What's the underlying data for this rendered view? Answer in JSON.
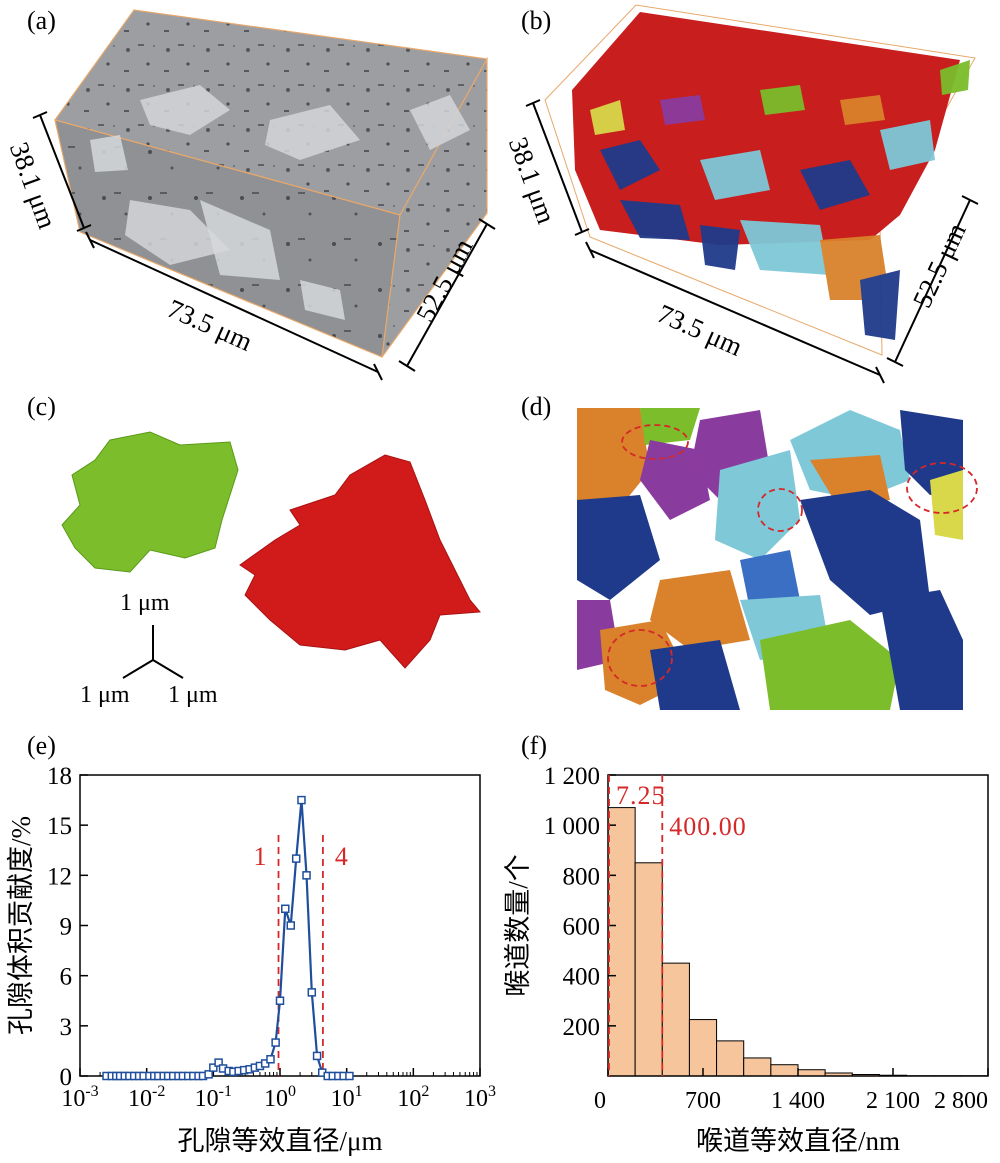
{
  "panels": {
    "a": {
      "label": "(a)",
      "dim_x": "73.5 μm",
      "dim_y": "52.5 μm",
      "dim_z": "38.1 μm"
    },
    "b": {
      "label": "(b)",
      "dim_x": "73.5 μm",
      "dim_y": "52.5 μm",
      "dim_z": "38.1 μm"
    },
    "c": {
      "label": "(c)",
      "axis_up": "1 μm",
      "axis_left": "1 μm",
      "axis_right": "1 μm"
    },
    "d": {
      "label": "(d)"
    },
    "e": {
      "label": "(e)"
    },
    "f": {
      "label": "(f)"
    }
  },
  "colors": {
    "green_pore": "#7bbd2a",
    "red_pore": "#cc1a1a",
    "navy_pore": "#1f3a8a",
    "cyan_pore": "#7ec8d8",
    "orange_pore": "#d9822b",
    "purple_pore": "#8a3b9e",
    "yellow_pore": "#d8d84a",
    "line_blue": "#1f4e9c",
    "dash_red": "#d62828",
    "bar_fill": "#f6c59c",
    "bbox_orange": "#e8a86a"
  },
  "chart_data": [
    {
      "type": "line",
      "panel": "e",
      "xlabel": "孔隙等效直径/μm",
      "ylabel": "孔隙体积贡献度/%",
      "xscale": "log",
      "xlim": [
        0.001,
        1000
      ],
      "ylim": [
        0,
        18
      ],
      "xticks": [
        0.001,
        0.01,
        0.1,
        1,
        10,
        100,
        1000
      ],
      "xtick_labels": [
        [
          "10",
          "-3"
        ],
        [
          "10",
          "-2"
        ],
        [
          "10",
          "-1"
        ],
        [
          "10",
          "0"
        ],
        [
          "10",
          "1"
        ],
        [
          "10",
          "2"
        ],
        [
          "10",
          "3"
        ]
      ],
      "yticks": [
        0,
        3,
        6,
        9,
        12,
        15,
        18
      ],
      "ytick_labels": [
        "0",
        "3",
        "6",
        "9",
        "12",
        "15",
        "18"
      ],
      "series": [
        {
          "x": [
            0.0025,
            0.003,
            0.0035,
            0.004,
            0.0047,
            0.0055,
            0.0065,
            0.0077,
            0.009,
            0.011,
            0.013,
            0.015,
            0.018,
            0.021,
            0.025,
            0.03,
            0.035,
            0.042,
            0.05,
            0.06,
            0.07,
            0.085,
            0.1,
            0.12,
            0.14,
            0.17,
            0.2,
            0.24,
            0.29,
            0.35,
            0.42,
            0.5,
            0.6,
            0.72,
            0.86,
            1.0,
            1.2,
            1.45,
            1.75,
            2.1,
            2.5,
            3.0,
            3.6,
            4.3,
            5.2,
            6.2,
            7.5,
            9.0,
            11.0
          ],
          "y": [
            0,
            0,
            0,
            0,
            0,
            0,
            0,
            0,
            0,
            0,
            0,
            0,
            0,
            0,
            0,
            0,
            0,
            0,
            0,
            0,
            0,
            0.1,
            0.5,
            0.8,
            0.45,
            0.3,
            0.25,
            0.3,
            0.35,
            0.4,
            0.5,
            0.6,
            0.75,
            1.0,
            2.0,
            4.5,
            10,
            9,
            13,
            16.5,
            12,
            5,
            1.2,
            0.2,
            0,
            0,
            0,
            0,
            0
          ]
        }
      ],
      "vlines": [
        {
          "x": 0.95,
          "label": "1"
        },
        {
          "x": 4.4,
          "label": "4"
        }
      ],
      "grid": false
    },
    {
      "type": "bar",
      "panel": "f",
      "xlabel": "喉道等效直径/nm",
      "ylabel": "喉道数量/个",
      "xlim": [
        0,
        2800
      ],
      "ylim": [
        0,
        1200
      ],
      "xticks": [
        0,
        700,
        1400,
        2100,
        2800
      ],
      "xtick_labels": [
        "0",
        "700",
        "1 400",
        "2 100",
        "2 800"
      ],
      "yticks": [
        200,
        400,
        600,
        800,
        1000,
        1200
      ],
      "ytick_labels": [
        "200",
        "400",
        "600",
        "800",
        "1 000",
        "1 200"
      ],
      "bin_width": 200,
      "bin_starts": [
        0,
        200,
        400,
        600,
        800,
        1000,
        1200,
        1400,
        1600,
        1800,
        2000,
        2200,
        2400,
        2600
      ],
      "values": [
        1070,
        850,
        450,
        225,
        140,
        72,
        45,
        25,
        12,
        6,
        3,
        1,
        1,
        1
      ],
      "vlines": [
        {
          "x": 7.25,
          "label": "7.25"
        },
        {
          "x": 400,
          "label": "400.00"
        }
      ],
      "grid": false
    }
  ]
}
